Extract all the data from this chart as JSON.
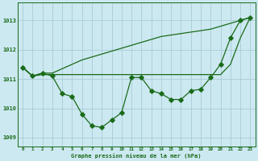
{
  "xlabel": "Graphe pression niveau de la mer (hPa)",
  "bg_color": "#cce8f0",
  "grid_color": "#aaccd8",
  "line_color": "#1a6b1a",
  "x": [
    0,
    1,
    2,
    3,
    4,
    5,
    6,
    7,
    8,
    9,
    10,
    11,
    12,
    13,
    14,
    15,
    16,
    17,
    18,
    19,
    20,
    21,
    22,
    23
  ],
  "line_measured": [
    1011.4,
    1011.1,
    1011.2,
    1011.1,
    1010.5,
    1010.4,
    1009.8,
    1009.4,
    1009.35,
    1009.6,
    1009.85,
    1011.05,
    1011.05,
    1010.6,
    1010.5,
    1010.3,
    1010.3,
    1010.6,
    1010.65,
    1011.05,
    1011.5,
    1012.4,
    1013.0,
    1013.1
  ],
  "line_flat": [
    1011.4,
    1011.1,
    1011.15,
    1011.15,
    1011.15,
    1011.15,
    1011.15,
    1011.15,
    1011.15,
    1011.15,
    1011.15,
    1011.15,
    1011.15,
    1011.15,
    1011.15,
    1011.15,
    1011.15,
    1011.15,
    1011.15,
    1011.15,
    1011.15,
    1011.5,
    1012.4,
    1013.1
  ],
  "line_rising": [
    1011.4,
    1011.1,
    1011.2,
    1011.2,
    1011.35,
    1011.5,
    1011.65,
    1011.75,
    1011.85,
    1011.95,
    1012.05,
    1012.15,
    1012.25,
    1012.35,
    1012.45,
    1012.5,
    1012.55,
    1012.6,
    1012.65,
    1012.7,
    1012.8,
    1012.9,
    1013.0,
    1013.1
  ],
  "ylim_min": 1008.7,
  "ylim_max": 1013.6,
  "yticks": [
    1009,
    1010,
    1011,
    1012,
    1013
  ],
  "xticks": [
    0,
    1,
    2,
    3,
    4,
    5,
    6,
    7,
    8,
    9,
    10,
    11,
    12,
    13,
    14,
    15,
    16,
    17,
    18,
    19,
    20,
    21,
    22,
    23
  ],
  "xtick_labels": [
    "0",
    "1",
    "2",
    "3",
    "4",
    "5",
    "6",
    "7",
    "8",
    "9",
    "10",
    "11",
    "12",
    "13",
    "14",
    "15",
    "16",
    "17",
    "18",
    "19",
    "20",
    "21",
    "22",
    "23"
  ]
}
